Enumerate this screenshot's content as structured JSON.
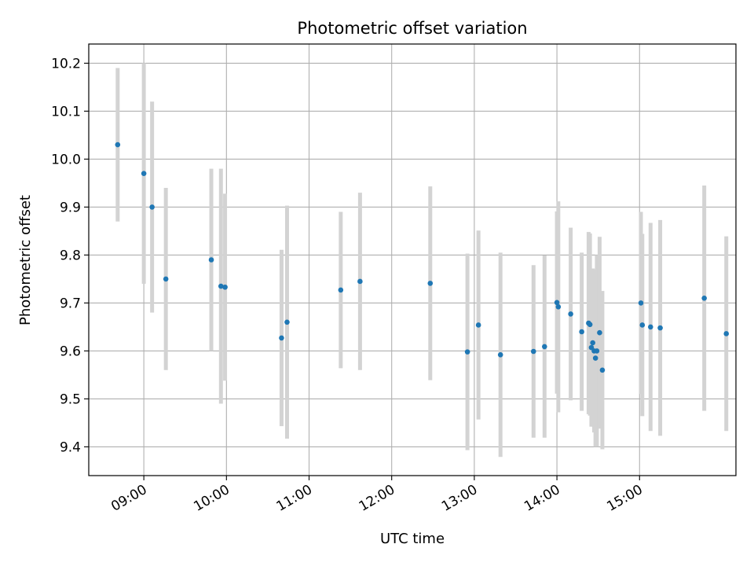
{
  "chart_data": {
    "type": "scatter",
    "title": "Photometric offset variation",
    "xlabel": "UTC time",
    "ylabel": "Photometric offset",
    "xlim": [
      "08:20",
      "16:10"
    ],
    "ylim": [
      9.34,
      10.24
    ],
    "grid": true,
    "x_ticks": [
      "09:00",
      "10:00",
      "11:00",
      "12:00",
      "13:00",
      "14:00",
      "15:00"
    ],
    "y_ticks": [
      "9.4",
      "9.5",
      "9.6",
      "9.7",
      "9.8",
      "9.9",
      "10.0",
      "10.1",
      "10.2"
    ],
    "series": [
      {
        "style": "points with error bars",
        "point_color": "#1f77b4",
        "errorbar_color": "#d3d3d3",
        "points": [
          {
            "x": "08:41",
            "y": 10.03,
            "err": 0.16
          },
          {
            "x": "09:00",
            "y": 9.97,
            "err": 0.23
          },
          {
            "x": "09:06",
            "y": 9.9,
            "err": 0.22
          },
          {
            "x": "09:16",
            "y": 9.75,
            "err": 0.19
          },
          {
            "x": "09:49",
            "y": 9.79,
            "err": 0.19
          },
          {
            "x": "09:56",
            "y": 9.735,
            "err": 0.245
          },
          {
            "x": "09:59",
            "y": 9.733,
            "err": 0.195
          },
          {
            "x": "10:40",
            "y": 9.627,
            "err": 0.184
          },
          {
            "x": "10:44",
            "y": 9.66,
            "err": 0.243
          },
          {
            "x": "11:23",
            "y": 9.727,
            "err": 0.163
          },
          {
            "x": "11:37",
            "y": 9.745,
            "err": 0.185
          },
          {
            "x": "12:28",
            "y": 9.741,
            "err": 0.202
          },
          {
            "x": "12:55",
            "y": 9.598,
            "err": 0.205
          },
          {
            "x": "13:03",
            "y": 9.654,
            "err": 0.197
          },
          {
            "x": "13:19",
            "y": 9.592,
            "err": 0.213
          },
          {
            "x": "13:43",
            "y": 9.599,
            "err": 0.18
          },
          {
            "x": "13:51",
            "y": 9.609,
            "err": 0.19
          },
          {
            "x": "14:00",
            "y": 9.701,
            "err": 0.19
          },
          {
            "x": "14:01",
            "y": 9.692,
            "err": 0.22
          },
          {
            "x": "14:10",
            "y": 9.677,
            "err": 0.18
          },
          {
            "x": "14:18",
            "y": 9.64,
            "err": 0.165
          },
          {
            "x": "14:23",
            "y": 9.658,
            "err": 0.19
          },
          {
            "x": "14:24",
            "y": 9.655,
            "err": 0.19
          },
          {
            "x": "14:25",
            "y": 9.607,
            "err": 0.165
          },
          {
            "x": "14:26",
            "y": 9.617,
            "err": 0.155
          },
          {
            "x": "14:27",
            "y": 9.6,
            "err": 0.17
          },
          {
            "x": "14:28",
            "y": 9.585,
            "err": 0.185
          },
          {
            "x": "14:29",
            "y": 9.6,
            "err": 0.2
          },
          {
            "x": "14:31",
            "y": 9.638,
            "err": 0.2
          },
          {
            "x": "14:33",
            "y": 9.56,
            "err": 0.165
          },
          {
            "x": "15:01",
            "y": 9.7,
            "err": 0.19
          },
          {
            "x": "15:02",
            "y": 9.654,
            "err": 0.19
          },
          {
            "x": "15:08",
            "y": 9.65,
            "err": 0.217
          },
          {
            "x": "15:15",
            "y": 9.648,
            "err": 0.225
          },
          {
            "x": "15:47",
            "y": 9.71,
            "err": 0.235
          },
          {
            "x": "16:03",
            "y": 9.636,
            "err": 0.203
          }
        ]
      }
    ]
  }
}
